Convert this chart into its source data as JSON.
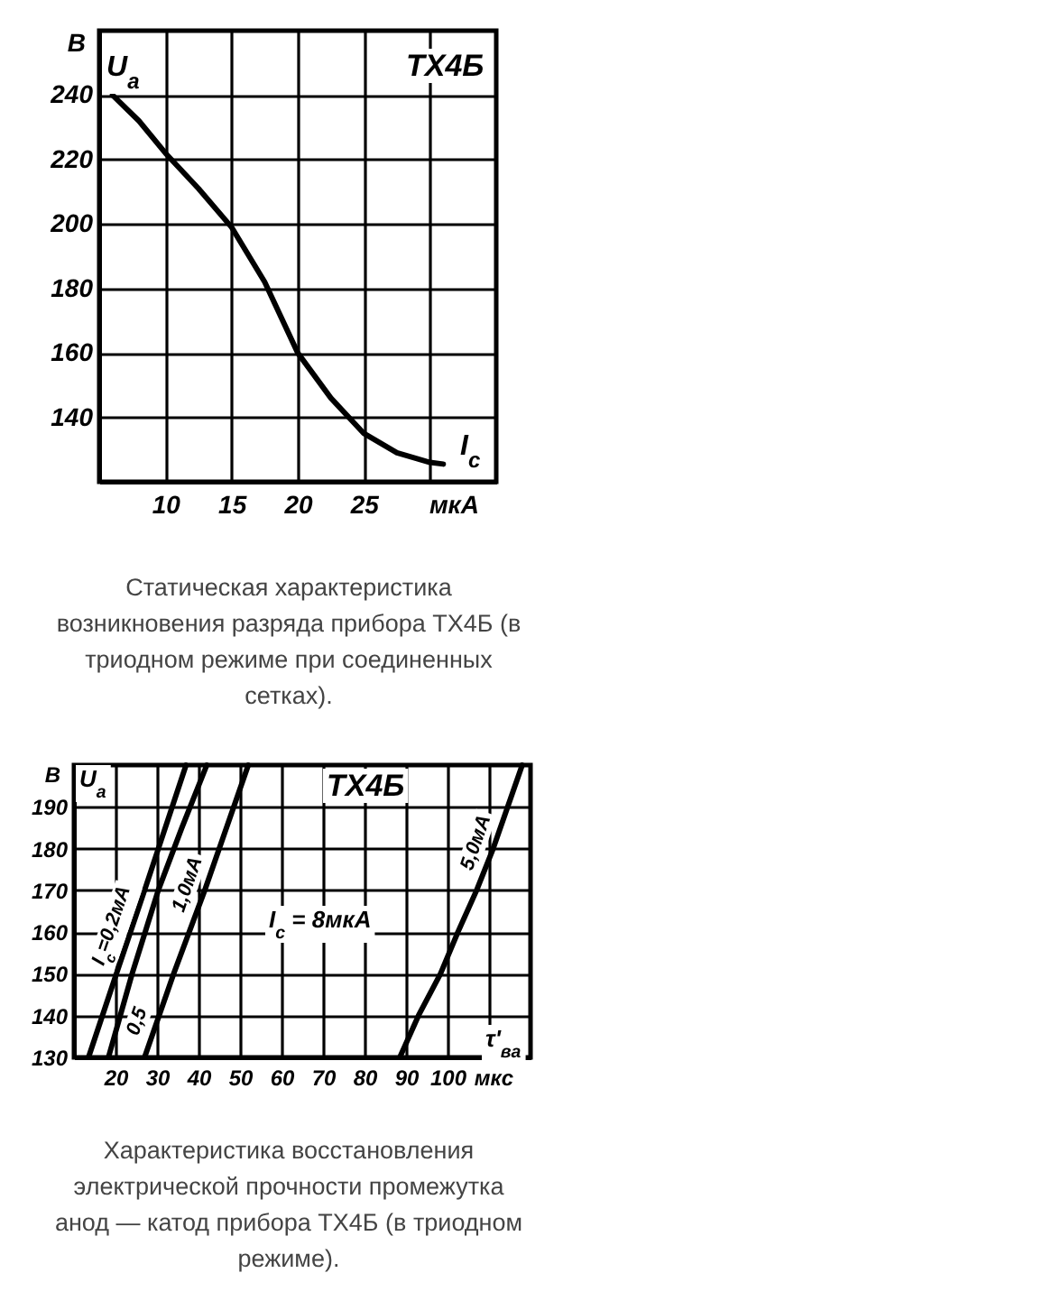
{
  "chart_data": [
    {
      "type": "line",
      "title": "ТХ4Б",
      "xlabel": "мкА",
      "ylabel": "В",
      "annotations": [
        "U$_{a}$",
        "I$_{c}$",
        "Статическая характеристика возникновения разряда прибора ТХ4Б (в триодном режиме при соединенных сетках)."
      ],
      "xlim": [
        5,
        35
      ],
      "ylim": [
        120,
        260
      ],
      "xticks": [
        10,
        15,
        20,
        25,
        {
          "value": 30,
          "label": null
        }
      ],
      "yticks": [
        140,
        160,
        180,
        200,
        220,
        240
      ],
      "series": [
        {
          "color": "#000000",
          "x": [
            6,
            8,
            10,
            12.5,
            15,
            17.5,
            20,
            22.5,
            25,
            27.5,
            30,
            31
          ],
          "values": [
            240,
            232,
            222,
            211,
            199,
            182,
            160,
            146,
            135,
            129,
            126,
            125.5
          ]
        }
      ],
      "grid": true,
      "marker": "none",
      "line_style": "solid"
    },
    {
      "type": "line",
      "title": "ТХ4Б",
      "xlabel": "мкс",
      "ylabel": "В",
      "annotations": [
        "U$_{a}$",
        "τ'$_{вa}$",
        "I$_{c}$ = 8мкА",
        "Характеристика восстановления электрической прочности промежутка анод — катод прибора ТХ4Б (в триодном режиме)."
      ],
      "xlim": [
        10,
        120
      ],
      "ylim": [
        130,
        200
      ],
      "xticks": [
        20,
        30,
        40,
        50,
        60,
        70,
        80,
        90,
        100,
        {
          "value": 110,
          "label": null
        }
      ],
      "yticks": [
        130,
        140,
        150,
        160,
        170,
        180,
        190
      ],
      "series": [
        {
          "name": "I$_{c}$=0,2мА",
          "color": "#000000",
          "x": [
            13.5,
            20.2,
            27,
            37
          ],
          "values": [
            130,
            150,
            170,
            200
          ]
        },
        {
          "name": "0,5",
          "color": "#000000",
          "x": [
            18.3,
            24,
            30.3,
            36,
            42
          ],
          "values": [
            130,
            150,
            170,
            185,
            200
          ]
        },
        {
          "name": "1,0мА",
          "color": "#000000",
          "x": [
            27,
            34,
            41.5,
            52
          ],
          "values": [
            130,
            150,
            170,
            200
          ]
        },
        {
          "name": "5,0мА",
          "color": "#000000",
          "x": [
            88.5,
            93,
            98.3,
            102.5,
            107,
            111,
            114.5,
            118
          ],
          "values": [
            130,
            140,
            150,
            160,
            170,
            180,
            190,
            200
          ]
        }
      ],
      "grid": true,
      "marker": "none",
      "line_style": "solid"
    }
  ]
}
